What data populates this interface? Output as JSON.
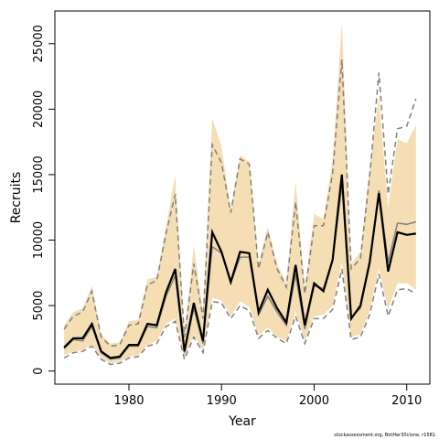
{
  "chart_data": {
    "type": "line",
    "title": "",
    "xlabel": "Year",
    "ylabel": "Recruits",
    "xlim": [
      1972,
      2012.5
    ],
    "ylim": [
      -1000,
      27500
    ],
    "x_ticks": [
      1980,
      1990,
      2000,
      2010
    ],
    "y_ticks": [
      0,
      5000,
      10000,
      15000,
      20000,
      25000
    ],
    "grid": false,
    "legend": "none",
    "colors": {
      "band_fill": "#f5deb3",
      "central_line": "#000000",
      "alt_line": "#808080",
      "dashed_bounds": "#808080"
    },
    "x": [
      1973,
      1974,
      1975,
      1976,
      1977,
      1978,
      1979,
      1980,
      1981,
      1982,
      1983,
      1984,
      1985,
      1986,
      1987,
      1988,
      1989,
      1990,
      1991,
      1992,
      1993,
      1994,
      1995,
      1996,
      1997,
      1998,
      1999,
      2000,
      2001,
      2002,
      2003,
      2004,
      2005,
      2006,
      2007,
      2008,
      2009,
      2010,
      2011
    ],
    "series": [
      {
        "values": [
          1800,
          2500,
          2500,
          3600,
          1500,
          1000,
          1100,
          2000,
          2000,
          3600,
          3500,
          6000,
          7800,
          1500,
          5200,
          2300,
          10600,
          9100,
          6800,
          9100,
          9000,
          4500,
          6200,
          4800,
          3700,
          8100,
          3500,
          6700,
          6100,
          8500,
          15000,
          4000,
          5000,
          8300,
          13600,
          7600,
          10600,
          10400,
          10500
        ]
      },
      {
        "values": [
          1700,
          2400,
          2300,
          3400,
          1400,
          900,
          1000,
          1900,
          1900,
          3400,
          3300,
          5700,
          7300,
          1400,
          4800,
          2100,
          9500,
          9000,
          6700,
          8700,
          8700,
          4300,
          5700,
          4500,
          3500,
          7400,
          3200,
          6500,
          6300,
          8500,
          14200,
          4100,
          4800,
          8200,
          13800,
          8300,
          11300,
          11200,
          11400
        ]
      },
      {
        "values": [
          1000,
          1400,
          1500,
          1900,
          900,
          500,
          600,
          1000,
          1100,
          1900,
          2100,
          3400,
          3800,
          900,
          2600,
          1400,
          5300,
          5200,
          4000,
          5000,
          4600,
          2500,
          3100,
          2500,
          2100,
          4200,
          2100,
          4000,
          4000,
          4700,
          7800,
          2400,
          2600,
          4300,
          7400,
          4200,
          6200,
          6300,
          5900
        ]
      },
      {
        "values": [
          3200,
          4200,
          4500,
          6100,
          2600,
          1900,
          2000,
          3500,
          3600,
          6600,
          6900,
          10500,
          13500,
          2600,
          8200,
          4000,
          17300,
          15900,
          12100,
          16200,
          15800,
          7800,
          10600,
          7800,
          6400,
          12900,
          5900,
          11100,
          11100,
          15100,
          23800,
          7800,
          8600,
          14900,
          22800,
          13500,
          18500,
          18700,
          20800
        ]
      },
      {
        "values": [
          1200,
          1500,
          1600,
          2000,
          1000,
          600,
          700,
          1100,
          1200,
          2000,
          2300,
          3600,
          4000,
          1000,
          2800,
          1500,
          5600,
          5400,
          4200,
          5300,
          4900,
          2700,
          3300,
          2600,
          2300,
          4500,
          2300,
          4200,
          4300,
          5000,
          8300,
          2600,
          2800,
          4600,
          7800,
          4700,
          6700,
          6700,
          6200
        ]
      },
      {
        "values": [
          3500,
          4500,
          4800,
          6500,
          2800,
          2100,
          2200,
          3800,
          3900,
          7000,
          7200,
          11000,
          15000,
          2800,
          9600,
          4400,
          19300,
          17200,
          12300,
          16500,
          16000,
          8200,
          11000,
          8200,
          6700,
          14500,
          6300,
          12000,
          11600,
          16100,
          26700,
          8200,
          9100,
          15600,
          21000,
          12500,
          17700,
          17400,
          18800
        ]
      }
    ]
  },
  "footnote": "stockassessment.org, BotHer30clone, r1581"
}
